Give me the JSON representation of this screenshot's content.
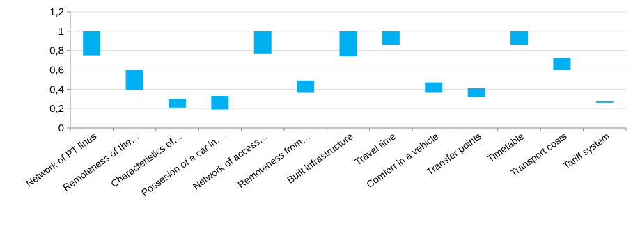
{
  "chart_data": {
    "type": "bar",
    "subtype": "floating-range",
    "title": "",
    "xlabel": "",
    "ylabel": "",
    "ylim": [
      0,
      1.2
    ],
    "yticks": [
      "0",
      "0,2",
      "0,4",
      "0,6",
      "0,8",
      "1",
      "1,2"
    ],
    "grid": true,
    "legend": "none",
    "categories": [
      "Network of PT lines",
      "Remoteness of the…",
      "Characteristics of…",
      "Possesion of a car in…",
      "Network of access…",
      "Remoteness from…",
      "Built infrastructure",
      "Travel time",
      "Comfort in a vehicle",
      "Transfer points",
      "Timetable",
      "Transport costs",
      "Tariff system"
    ],
    "series": [
      {
        "low": [
          0.75,
          0.39,
          0.21,
          0.19,
          0.77,
          0.37,
          0.74,
          0.86,
          0.37,
          0.32,
          0.86,
          0.6,
          0.26
        ],
        "high": [
          1.0,
          0.6,
          0.3,
          0.33,
          1.0,
          0.49,
          1.0,
          1.0,
          0.47,
          0.41,
          1.0,
          0.72,
          0.28
        ]
      }
    ],
    "colors": {
      "bar": "#00b0f0",
      "grid": "#d9d9d9",
      "axis": "#8c8c8c"
    }
  }
}
